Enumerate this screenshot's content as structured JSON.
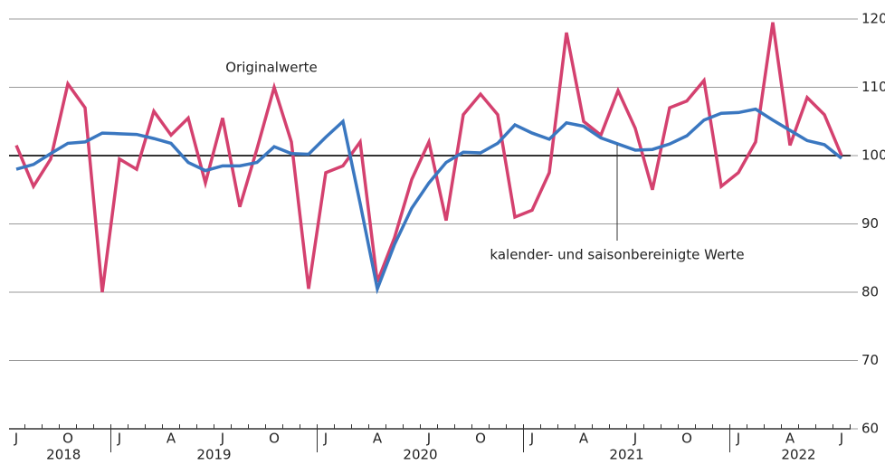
{
  "chart_data": {
    "type": "line",
    "categories": [
      "J",
      null,
      null,
      "O",
      null,
      null,
      "J",
      null,
      null,
      "A",
      null,
      null,
      "J",
      null,
      null,
      "O",
      null,
      null,
      "J",
      null,
      null,
      "A",
      null,
      null,
      "J",
      null,
      null,
      "O",
      null,
      null,
      "J",
      null,
      null,
      "A",
      null,
      null,
      "J",
      null,
      null,
      "O",
      null,
      null,
      "J",
      null,
      null,
      "A",
      null,
      null,
      "J"
    ],
    "years": [
      "2018",
      "2019",
      "2020",
      "2021",
      "2022"
    ],
    "series": [
      {
        "name": "Originalwerte",
        "color": "#d4416f",
        "values": [
          101.5,
          95.5,
          99.5,
          110.5,
          107,
          80,
          99.5,
          98,
          106.5,
          103,
          105.5,
          96,
          105.5,
          92.5,
          101,
          110,
          102,
          80.5,
          97.5,
          98.5,
          102,
          81.5,
          88,
          96.5,
          102,
          90.5,
          106,
          109,
          106,
          91,
          92,
          97.5,
          118,
          105,
          103,
          109.5,
          104,
          95,
          107,
          108,
          111,
          95.5,
          97.5,
          102,
          119.5,
          101.5,
          108.5,
          106,
          100
        ]
      },
      {
        "name": "kalender- und saisonbereinigte Werte",
        "color": "#3a77c0",
        "values": [
          98,
          98.7,
          100.3,
          101.8,
          102,
          103.3,
          103.2,
          103.1,
          102.5,
          101.8,
          99,
          97.8,
          98.5,
          98.5,
          99,
          101.3,
          100.3,
          100.2,
          102.7,
          105,
          93,
          80.5,
          87,
          92.3,
          96,
          99,
          100.5,
          100.4,
          101.8,
          104.5,
          103.3,
          102.4,
          104.8,
          104.3,
          102.6,
          101.7,
          100.8,
          100.9,
          101.7,
          102.9,
          105.2,
          106.2,
          106.3,
          106.8,
          105.2,
          103.7,
          102.2,
          101.6,
          99.6
        ]
      }
    ],
    "ylim": [
      60,
      120
    ],
    "yticks": [
      60,
      70,
      80,
      90,
      100,
      110,
      120
    ],
    "baseline": 100,
    "grid": true
  }
}
